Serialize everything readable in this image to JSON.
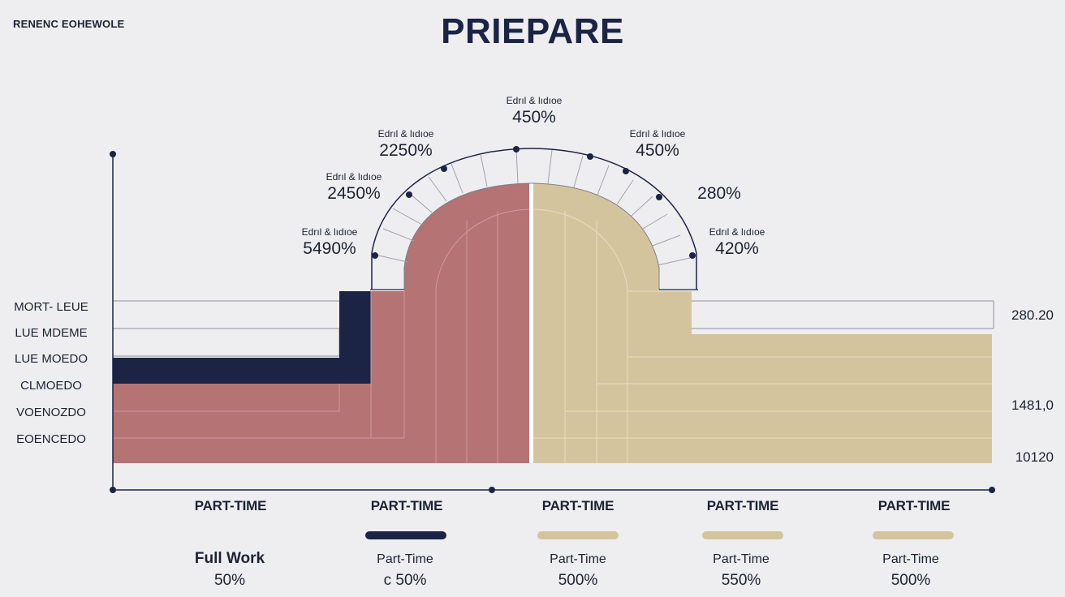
{
  "header": {
    "corner_label": "RENENC EOHEWOLE",
    "title": "PRIEPARE"
  },
  "colors": {
    "navy": "#1b2444",
    "rose": "#b57374",
    "beige": "#d4c49e",
    "background": "#eeeef0"
  },
  "chart_data": {
    "type": "area",
    "title": "PRIEPARE",
    "row_labels": [
      "MORT- LEUE",
      "LUE MDEME",
      "LUE MOEDO",
      "CLMOEDO",
      "VOENOZDO",
      "EOENCEDO"
    ],
    "right_ticks": [
      "280.20",
      "1481,0",
      "10120"
    ],
    "categories": [
      "PART-TIME",
      "PART-TIME",
      "PART-TIME",
      "PART-TIME",
      "PART-TIME"
    ],
    "arc_annotations": [
      {
        "label": "Edrıl & lıdıoe",
        "value": "5490%"
      },
      {
        "label": "Edrıl & lıdıoe",
        "value": "2450%"
      },
      {
        "label": "Edrıl & lıdıoe",
        "value": "2250%"
      },
      {
        "label": "Edrıl & lıdıoe",
        "value": "450%"
      },
      {
        "label": "Edrıl & lıdıoe",
        "value": "450%"
      },
      {
        "label": "",
        "value": "280%"
      },
      {
        "label": "Edrıl & lıdıoe",
        "value": "420%"
      }
    ],
    "series": [
      {
        "name": "Full Work",
        "value": "50%",
        "color": "#b57374"
      },
      {
        "name": "Part-Time",
        "value": "c 50%",
        "color": "#1b2444"
      },
      {
        "name": "Part-Time",
        "value": "500%",
        "color": "#d4c49e"
      },
      {
        "name": "Part-Time",
        "value": "550%",
        "color": "#d4c49e"
      },
      {
        "name": "Part-Time",
        "value": "500%",
        "color": "#d4c49e"
      }
    ],
    "grid": true
  }
}
